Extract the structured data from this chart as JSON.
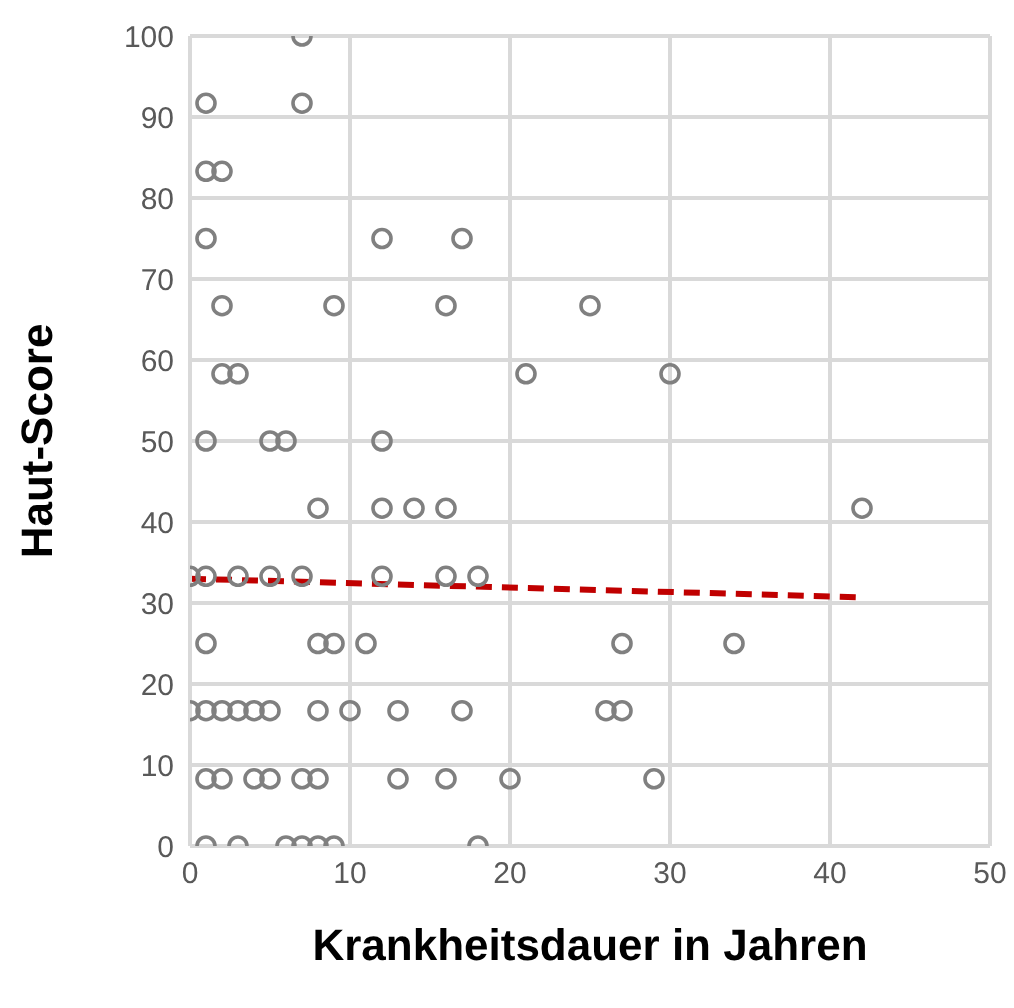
{
  "chart_data": {
    "type": "scatter",
    "xlabel": "Krankheitsdauer in Jahren",
    "ylabel": "Haut-Score",
    "xlim": [
      0,
      50
    ],
    "xticks": [
      0,
      10,
      20,
      30,
      40,
      50
    ],
    "ylim": [
      0,
      100
    ],
    "yticks": [
      0,
      10,
      20,
      30,
      40,
      50,
      60,
      70,
      80,
      90,
      100
    ],
    "grid": true,
    "legend": false,
    "series": [
      {
        "color": "#808080",
        "marker": "circle",
        "x": [
          7,
          1,
          7,
          1,
          2,
          1,
          12,
          17,
          2,
          9,
          16,
          25,
          2,
          3,
          21,
          30,
          1,
          5,
          6,
          12,
          8,
          12,
          14,
          16,
          42,
          0,
          1,
          3,
          5,
          7,
          12,
          16,
          18,
          1,
          8,
          9,
          11,
          27,
          34,
          0,
          1,
          2,
          3,
          4,
          5,
          8,
          10,
          13,
          17,
          26,
          27,
          1,
          2,
          4,
          5,
          7,
          8,
          13,
          16,
          20,
          29,
          1,
          3,
          6,
          7,
          8,
          9,
          18
        ],
        "values": [
          100,
          91.7,
          91.7,
          83.3,
          83.3,
          75,
          75,
          75,
          66.7,
          66.7,
          66.7,
          66.7,
          58.3,
          58.3,
          58.3,
          58.3,
          50,
          50,
          50,
          50,
          41.7,
          41.7,
          41.7,
          41.7,
          41.7,
          33.3,
          33.3,
          33.3,
          33.3,
          33.3,
          33.3,
          33.3,
          33.3,
          25,
          25,
          25,
          25,
          25,
          25,
          16.7,
          16.7,
          16.7,
          16.7,
          16.7,
          16.7,
          16.7,
          16.7,
          16.7,
          16.7,
          16.7,
          16.7,
          8.3,
          8.3,
          8.3,
          8.3,
          8.3,
          8.3,
          8.3,
          8.3,
          8.3,
          8.3,
          0,
          0,
          0,
          0,
          0,
          0,
          0
        ]
      },
      {
        "type": "line",
        "color": "#c00000",
        "line_style": "dashed",
        "marker": "none",
        "x": [
          0,
          42
        ],
        "values": [
          33,
          30.7
        ]
      }
    ]
  }
}
